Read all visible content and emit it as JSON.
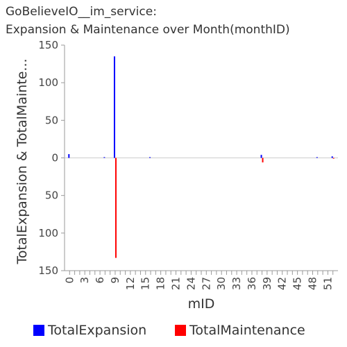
{
  "title_lines": [
    "GoBelieveIO__im_service:",
    "Expansion & Maintenance over Month(monthID)"
  ],
  "chart_data": {
    "type": "bar",
    "title": "GoBelieveIO__im_service: Expansion & Maintenance over Month(monthID)",
    "xlabel": "mID",
    "ylabel": "TotalExpansion & TotalMainte...",
    "x_ticks": [
      "0",
      "3",
      "6",
      "9",
      "12",
      "15",
      "18",
      "21",
      "24",
      "27",
      "30",
      "33",
      "36",
      "39",
      "42",
      "45",
      "48",
      "51"
    ],
    "y_ticks_up": [
      "150",
      "100",
      "50",
      "0"
    ],
    "y_ticks_down": [
      "50",
      "100",
      "150"
    ],
    "ylim": [
      -150,
      150
    ],
    "xlim": [
      -1,
      53
    ],
    "series": [
      {
        "name": "TotalExpansion",
        "color": "#0000ff",
        "direction": "up",
        "points": [
          [
            0,
            5
          ],
          [
            7,
            1
          ],
          [
            9,
            135
          ],
          [
            16,
            1
          ],
          [
            38,
            4
          ],
          [
            49,
            1
          ],
          [
            52,
            2
          ]
        ]
      },
      {
        "name": "TotalMaintenance",
        "color": "#ff0000",
        "direction": "down",
        "points": [
          [
            9,
            133
          ],
          [
            38,
            6
          ],
          [
            52,
            1
          ]
        ]
      }
    ],
    "legend_position": "bottom-center"
  }
}
